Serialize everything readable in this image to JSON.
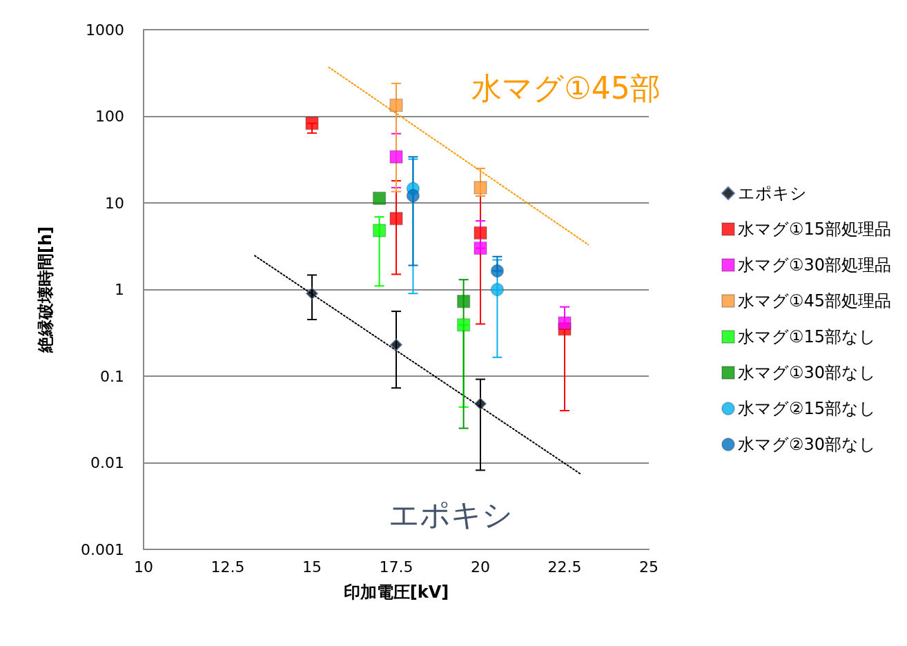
{
  "chart_data": {
    "type": "scatter",
    "xlabel": "印加電圧[kV]",
    "ylabel": "絶縁破壊時間[h]",
    "xlim": [
      10,
      25
    ],
    "xticks": [
      10,
      12.5,
      15,
      17.5,
      20,
      22.5,
      25
    ],
    "ylim": [
      0.001,
      1000
    ],
    "yticks": [
      0.001,
      0.01,
      0.1,
      1,
      10,
      100,
      1000
    ],
    "log": "y",
    "grid": "y",
    "legend": "right",
    "series": [
      {
        "name": "エポキシ",
        "color": "#000000",
        "marker": "diamond",
        "x": [
          15,
          17.5,
          20
        ],
        "values": [
          0.9,
          0.23,
          0.048
        ],
        "errors": [
          [
            0.45,
            1.47
          ],
          [
            0.073,
            0.56
          ],
          [
            0.0082,
            0.092
          ]
        ]
      },
      {
        "name": "水マグ①15部処理品",
        "color": "#ff0000",
        "marker": "square",
        "x": [
          15,
          17.5,
          20,
          22.5
        ],
        "values": [
          83,
          6.6,
          4.5,
          0.35
        ],
        "errors": [
          [
            64,
            83
          ],
          [
            1.5,
            18
          ],
          [
            0.4,
            12
          ],
          [
            0.04,
            0.35
          ]
        ]
      },
      {
        "name": "水マグ①30部処理品",
        "color": "#ff00ff",
        "marker": "square",
        "x": [
          17.5,
          20,
          22.5
        ],
        "values": [
          34,
          3.0,
          0.41
        ],
        "errors": [
          [
            15,
            63
          ],
          [
            3.0,
            6.2
          ],
          [
            0.41,
            0.63
          ]
        ]
      },
      {
        "name": "水マグ①45部処理品",
        "color": "#ff9933",
        "marker": "square",
        "x": [
          17.5,
          20
        ],
        "values": [
          134,
          15
        ],
        "errors": [
          [
            13.5,
            240
          ],
          [
            12,
            25
          ]
        ]
      },
      {
        "name": "水マグ①15部なし",
        "color": "#00ff00",
        "marker": "square",
        "x": [
          17,
          19.5
        ],
        "values": [
          4.8,
          0.39
        ],
        "errors": [
          [
            1.1,
            6.9
          ],
          [
            0.044,
            0.39
          ]
        ]
      },
      {
        "name": "水マグ①30部なし",
        "color": "#009900",
        "marker": "square",
        "x": [
          17,
          19.5
        ],
        "values": [
          11.3,
          0.73
        ],
        "errors": [
          null,
          [
            0.025,
            1.3
          ]
        ]
      },
      {
        "name": "水マグ②15部なし",
        "color": "#00b0f0",
        "marker": "circle",
        "x": [
          18,
          20.5
        ],
        "values": [
          14.6,
          1.0
        ],
        "errors": [
          [
            0.9,
            32
          ],
          [
            0.165,
            2.2
          ]
        ]
      },
      {
        "name": "水マグ②30部なし",
        "color": "#0070c0",
        "marker": "circle",
        "x": [
          18,
          20.5
        ],
        "values": [
          12.1,
          1.64
        ],
        "errors": [
          [
            1.9,
            34
          ],
          [
            1.64,
            2.4
          ]
        ]
      },
      {
        "type": "line",
        "color": "#000000",
        "line_style": "dotted",
        "marker": "none",
        "x": [
          13.3,
          23
        ],
        "values": [
          2.46,
          0.0073
        ]
      },
      {
        "type": "line",
        "color": "#ff9900",
        "line_style": "dotted",
        "marker": "none",
        "x": [
          15.5,
          23.2
        ],
        "values": [
          368,
          3.3
        ]
      }
    ],
    "annotations": [
      "水マグ①45部",
      "エポキシ"
    ]
  }
}
